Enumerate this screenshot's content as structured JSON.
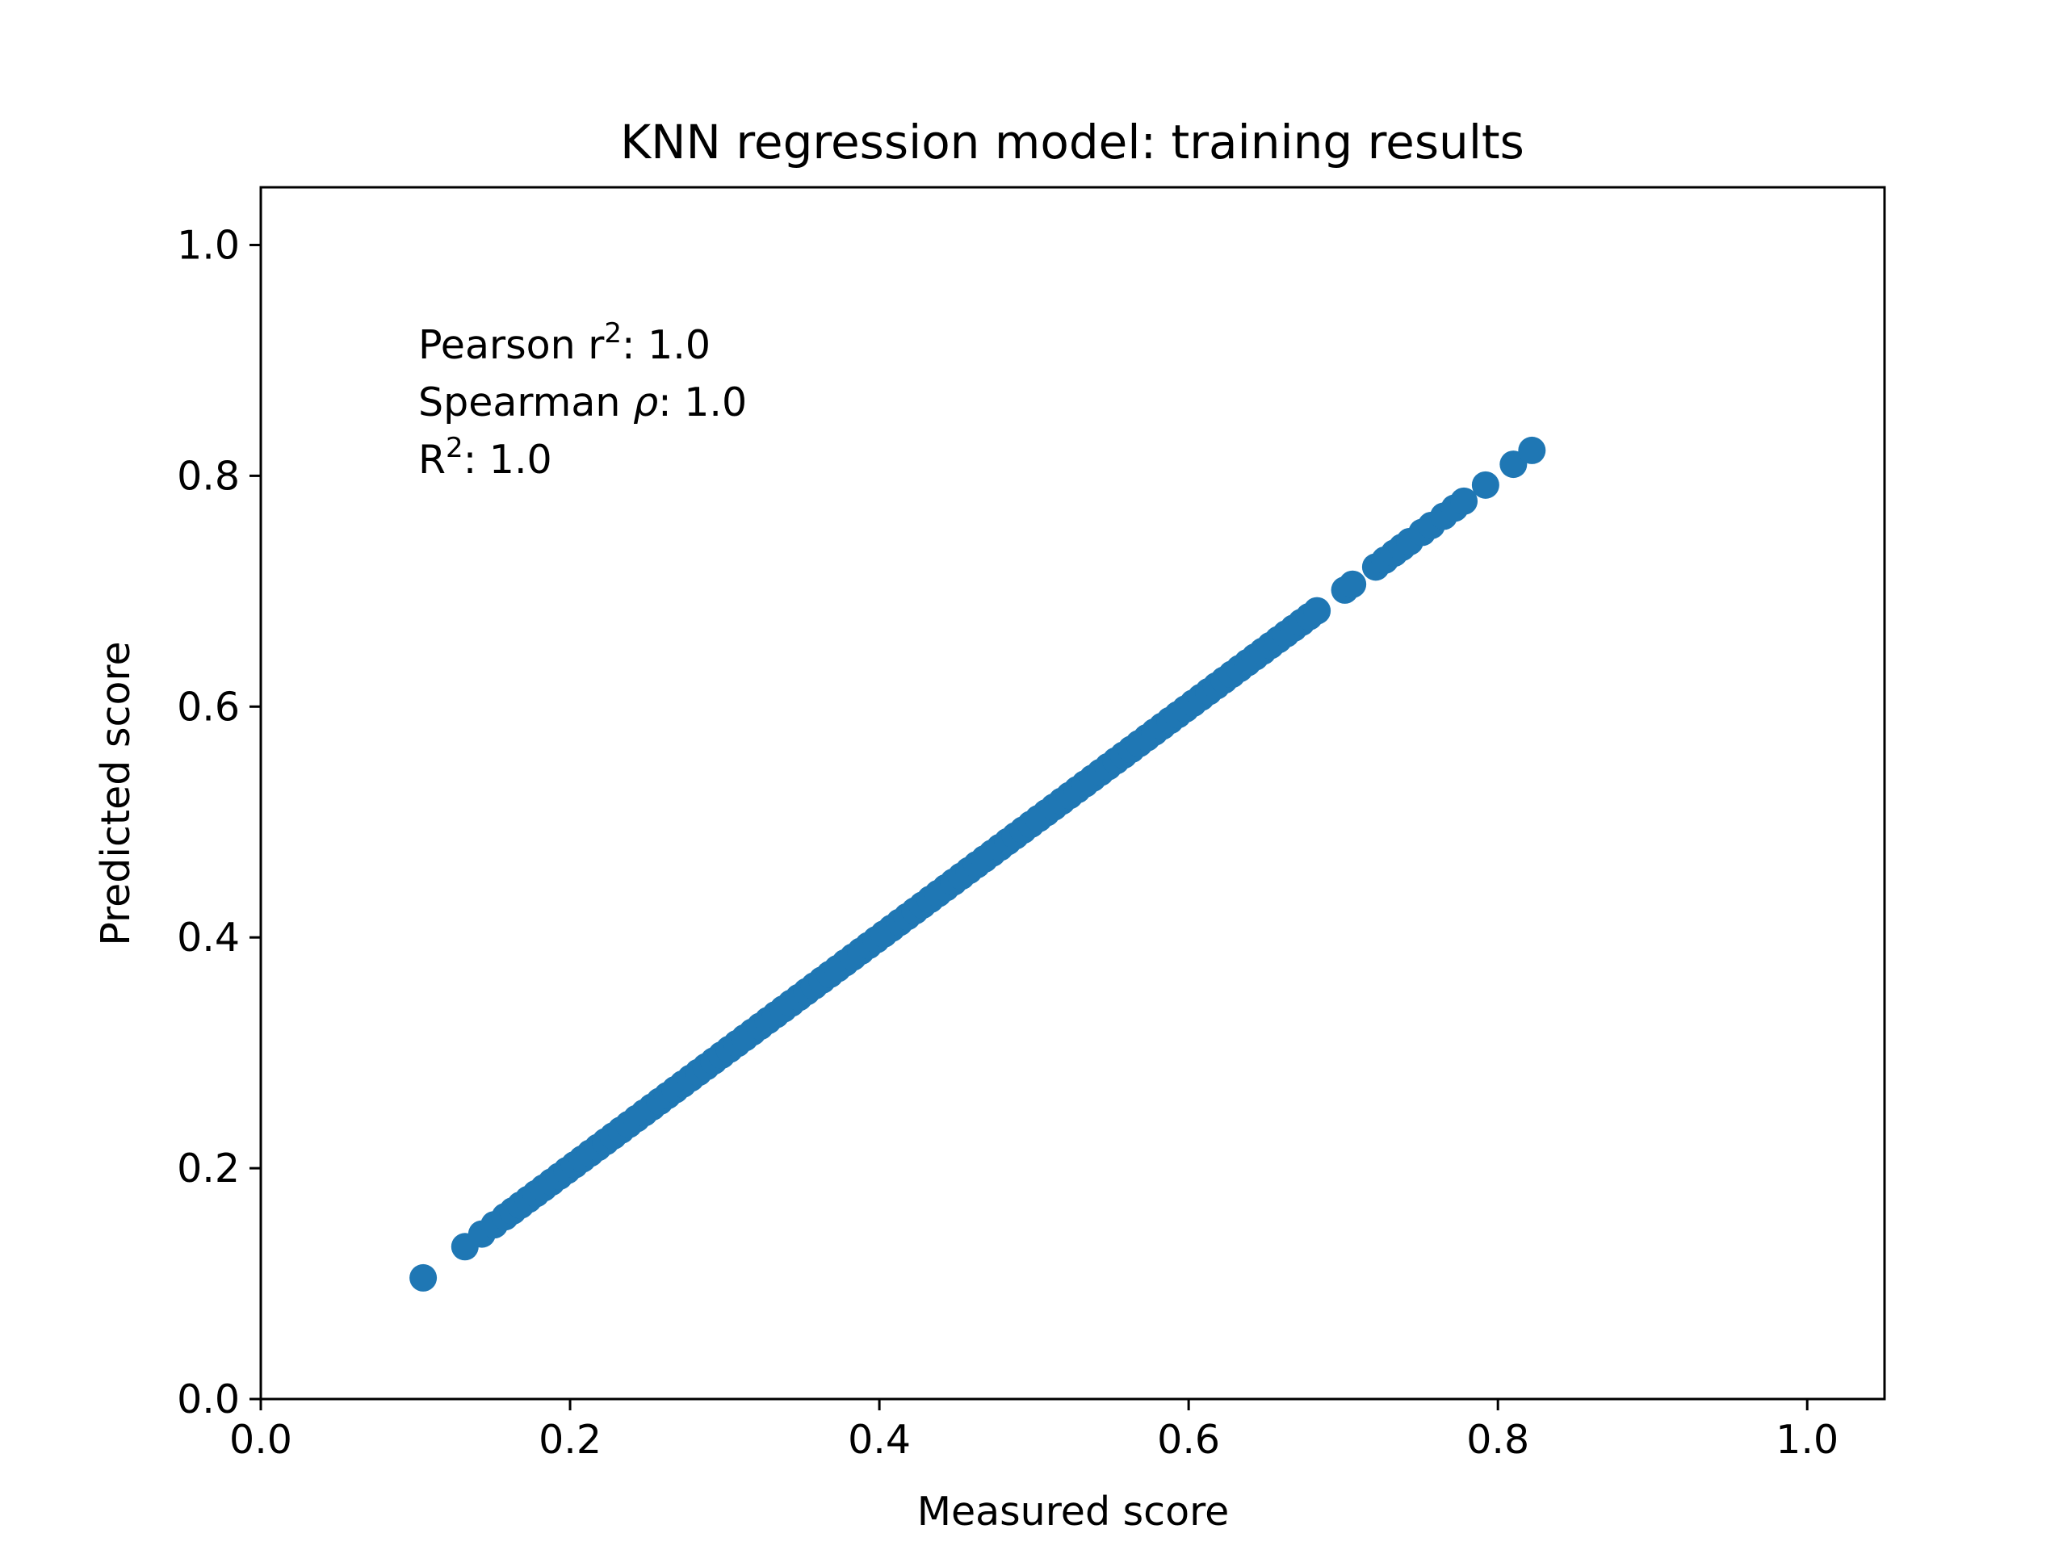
{
  "chart_data": {
    "type": "scatter",
    "title": "KNN regression model: training results",
    "xlabel": "Measured score",
    "ylabel": "Predicted score",
    "xlim": [
      0.0,
      1.05
    ],
    "ylim": [
      0.0,
      1.05
    ],
    "xticks": [
      0.0,
      0.2,
      0.4,
      0.6,
      0.8,
      1.0
    ],
    "yticks": [
      0.0,
      0.2,
      0.4,
      0.6,
      0.8,
      1.0
    ],
    "xtick_labels": [
      "0.0",
      "0.2",
      "0.4",
      "0.6",
      "0.8",
      "1.0"
    ],
    "ytick_labels": [
      "0.0",
      "0.2",
      "0.4",
      "0.6",
      "0.8",
      "1.0"
    ],
    "grid": false,
    "marker_color": "#1f77b4",
    "annotation": {
      "pearson_label": "Pearson r",
      "pearson_sup": "2",
      "pearson_value": ": 1.0",
      "spearman_label": "Spearman ",
      "spearman_symbol": "ρ",
      "spearman_value": ": 1.0",
      "r2_label": "R",
      "r2_sup": "2",
      "r2_value": ": 1.0"
    },
    "series": [
      {
        "x": [
          0.105,
          0.132,
          0.143,
          0.151,
          0.158,
          0.163,
          0.168,
          0.173,
          0.178,
          0.183,
          0.188,
          0.193,
          0.198,
          0.203,
          0.208,
          0.213,
          0.218,
          0.223,
          0.228,
          0.233,
          0.238,
          0.243,
          0.248,
          0.253,
          0.258,
          0.263,
          0.268,
          0.273,
          0.278,
          0.283,
          0.288,
          0.293,
          0.298,
          0.303,
          0.308,
          0.313,
          0.318,
          0.323,
          0.328,
          0.333,
          0.338,
          0.343,
          0.348,
          0.353,
          0.358,
          0.363,
          0.368,
          0.373,
          0.378,
          0.383,
          0.388,
          0.393,
          0.398,
          0.403,
          0.408,
          0.413,
          0.418,
          0.423,
          0.428,
          0.433,
          0.438,
          0.443,
          0.448,
          0.453,
          0.458,
          0.463,
          0.468,
          0.473,
          0.478,
          0.483,
          0.488,
          0.493,
          0.498,
          0.503,
          0.508,
          0.513,
          0.518,
          0.523,
          0.528,
          0.533,
          0.538,
          0.543,
          0.548,
          0.553,
          0.558,
          0.563,
          0.568,
          0.573,
          0.578,
          0.583,
          0.588,
          0.593,
          0.598,
          0.603,
          0.608,
          0.613,
          0.618,
          0.623,
          0.628,
          0.633,
          0.638,
          0.643,
          0.648,
          0.653,
          0.658,
          0.663,
          0.668,
          0.673,
          0.678,
          0.683,
          0.701,
          0.706,
          0.721,
          0.727,
          0.733,
          0.738,
          0.743,
          0.751,
          0.757,
          0.765,
          0.772,
          0.778,
          0.792,
          0.81,
          0.822
        ],
        "y": [
          0.105,
          0.132,
          0.143,
          0.151,
          0.158,
          0.163,
          0.168,
          0.173,
          0.178,
          0.183,
          0.188,
          0.193,
          0.198,
          0.203,
          0.208,
          0.213,
          0.218,
          0.223,
          0.228,
          0.233,
          0.238,
          0.243,
          0.248,
          0.253,
          0.258,
          0.263,
          0.268,
          0.273,
          0.278,
          0.283,
          0.288,
          0.293,
          0.298,
          0.303,
          0.308,
          0.313,
          0.318,
          0.323,
          0.328,
          0.333,
          0.338,
          0.343,
          0.348,
          0.353,
          0.358,
          0.363,
          0.368,
          0.373,
          0.378,
          0.383,
          0.388,
          0.393,
          0.398,
          0.403,
          0.408,
          0.413,
          0.418,
          0.423,
          0.428,
          0.433,
          0.438,
          0.443,
          0.448,
          0.453,
          0.458,
          0.463,
          0.468,
          0.473,
          0.478,
          0.483,
          0.488,
          0.493,
          0.498,
          0.503,
          0.508,
          0.513,
          0.518,
          0.523,
          0.528,
          0.533,
          0.538,
          0.543,
          0.548,
          0.553,
          0.558,
          0.563,
          0.568,
          0.573,
          0.578,
          0.583,
          0.588,
          0.593,
          0.598,
          0.603,
          0.608,
          0.613,
          0.618,
          0.623,
          0.628,
          0.633,
          0.638,
          0.643,
          0.648,
          0.653,
          0.658,
          0.663,
          0.668,
          0.673,
          0.678,
          0.683,
          0.701,
          0.706,
          0.721,
          0.727,
          0.733,
          0.738,
          0.743,
          0.751,
          0.757,
          0.765,
          0.772,
          0.778,
          0.792,
          0.81,
          0.822
        ]
      }
    ]
  }
}
